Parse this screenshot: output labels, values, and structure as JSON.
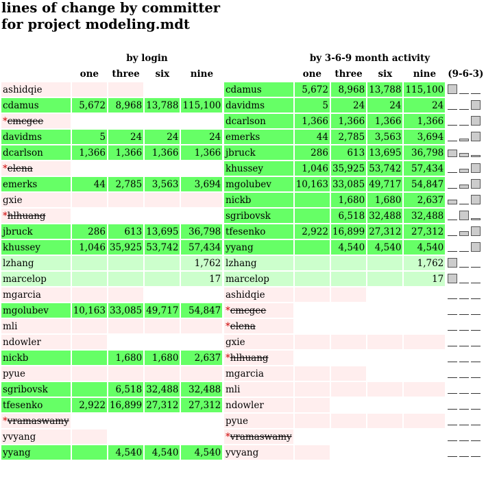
{
  "title": "lines of change by committer\nfor project modeling.mdt",
  "login_table": {
    "caption": "by login",
    "columns": [
      "one",
      "three",
      "six",
      "nine"
    ],
    "rows": [
      {
        "name": "ashidqie",
        "removed": false,
        "one": "",
        "three": "",
        "six": "",
        "nine": "",
        "colors": [
          "pk",
          "pk",
          "pk",
          "wh",
          "wh"
        ]
      },
      {
        "name": "cdamus",
        "removed": false,
        "one": "5,672",
        "three": "8,968",
        "six": "13,788",
        "nine": "115,100",
        "colors": [
          "g",
          "g",
          "g",
          "g",
          "g"
        ]
      },
      {
        "name": "cmcgee",
        "removed": true,
        "one": "",
        "three": "",
        "six": "",
        "nine": "",
        "colors": [
          "pk",
          "wh",
          "wh",
          "wh",
          "wh"
        ]
      },
      {
        "name": "davidms",
        "removed": false,
        "one": "5",
        "three": "24",
        "six": "24",
        "nine": "24",
        "colors": [
          "g",
          "g",
          "g",
          "g",
          "g"
        ]
      },
      {
        "name": "dcarlson",
        "removed": false,
        "one": "1,366",
        "three": "1,366",
        "six": "1,366",
        "nine": "1,366",
        "colors": [
          "g",
          "g",
          "g",
          "g",
          "g"
        ]
      },
      {
        "name": "elena",
        "removed": true,
        "one": "",
        "three": "",
        "six": "",
        "nine": "",
        "colors": [
          "pk",
          "wh",
          "wh",
          "wh",
          "wh"
        ]
      },
      {
        "name": "emerks",
        "removed": false,
        "one": "44",
        "three": "2,785",
        "six": "3,563",
        "nine": "3,694",
        "colors": [
          "g",
          "g",
          "g",
          "g",
          "g"
        ]
      },
      {
        "name": "gxie",
        "removed": false,
        "one": "",
        "three": "",
        "six": "",
        "nine": "",
        "colors": [
          "pk",
          "pk",
          "pk",
          "pk",
          "pk"
        ]
      },
      {
        "name": "hlhuang",
        "removed": true,
        "one": "",
        "three": "",
        "six": "",
        "nine": "",
        "colors": [
          "pk",
          "wh",
          "wh",
          "wh",
          "wh"
        ]
      },
      {
        "name": "jbruck",
        "removed": false,
        "one": "286",
        "three": "613",
        "six": "13,695",
        "nine": "36,798",
        "colors": [
          "g",
          "g",
          "g",
          "g",
          "g"
        ]
      },
      {
        "name": "khussey",
        "removed": false,
        "one": "1,046",
        "three": "35,925",
        "six": "53,742",
        "nine": "57,434",
        "colors": [
          "g",
          "g",
          "g",
          "g",
          "g"
        ]
      },
      {
        "name": "lzhang",
        "removed": false,
        "one": "",
        "three": "",
        "six": "",
        "nine": "1,762",
        "colors": [
          "lg",
          "lg",
          "lg",
          "lg",
          "lg"
        ]
      },
      {
        "name": "marcelop",
        "removed": false,
        "one": "",
        "three": "",
        "six": "",
        "nine": "17",
        "colors": [
          "lg",
          "lg",
          "lg",
          "lg",
          "lg"
        ]
      },
      {
        "name": "mgarcia",
        "removed": false,
        "one": "",
        "three": "",
        "six": "",
        "nine": "",
        "colors": [
          "pk",
          "pk",
          "pk",
          "wh",
          "wh"
        ]
      },
      {
        "name": "mgolubev",
        "removed": false,
        "one": "10,163",
        "three": "33,085",
        "six": "49,717",
        "nine": "54,847",
        "colors": [
          "g",
          "g",
          "g",
          "g",
          "g"
        ]
      },
      {
        "name": "mli",
        "removed": false,
        "one": "",
        "three": "",
        "six": "",
        "nine": "",
        "colors": [
          "pk",
          "pk",
          "pk",
          "pk",
          "pk"
        ]
      },
      {
        "name": "ndowler",
        "removed": false,
        "one": "",
        "three": "",
        "six": "",
        "nine": "",
        "colors": [
          "pk",
          "pk",
          "wh",
          "wh",
          "wh"
        ]
      },
      {
        "name": "nickb",
        "removed": false,
        "one": "",
        "three": "1,680",
        "six": "1,680",
        "nine": "2,637",
        "colors": [
          "g",
          "g",
          "g",
          "g",
          "g"
        ]
      },
      {
        "name": "pyue",
        "removed": false,
        "one": "",
        "three": "",
        "six": "",
        "nine": "",
        "colors": [
          "pk",
          "pk",
          "pk",
          "pk",
          "pk"
        ]
      },
      {
        "name": "sgribovsk",
        "removed": false,
        "one": "",
        "three": "6,518",
        "six": "32,488",
        "nine": "32,488",
        "colors": [
          "g",
          "g",
          "g",
          "g",
          "g"
        ]
      },
      {
        "name": "tfesenko",
        "removed": false,
        "one": "2,922",
        "three": "16,899",
        "six": "27,312",
        "nine": "27,312",
        "colors": [
          "g",
          "g",
          "g",
          "g",
          "g"
        ]
      },
      {
        "name": "vramaswamy",
        "removed": true,
        "one": "",
        "three": "",
        "six": "",
        "nine": "",
        "colors": [
          "pk",
          "wh",
          "wh",
          "wh",
          "wh"
        ]
      },
      {
        "name": "yvyang",
        "removed": false,
        "one": "",
        "three": "",
        "six": "",
        "nine": "",
        "colors": [
          "pk",
          "pk",
          "wh",
          "wh",
          "wh"
        ]
      },
      {
        "name": "yyang",
        "removed": false,
        "one": "",
        "three": "4,540",
        "six": "4,540",
        "nine": "4,540",
        "colors": [
          "g",
          "g",
          "g",
          "g",
          "g"
        ]
      }
    ]
  },
  "activity_table": {
    "caption": "by 3-6-9 month activity",
    "columns": [
      "one",
      "three",
      "six",
      "nine"
    ],
    "spark_header": "(9-6-3)",
    "rows": [
      {
        "name": "cdamus",
        "removed": false,
        "one": "5,672",
        "three": "8,968",
        "six": "13,788",
        "nine": "115,100",
        "colors": [
          "g",
          "g",
          "g",
          "g",
          "g"
        ],
        "spark": [
          0.9,
          0,
          0
        ]
      },
      {
        "name": "davidms",
        "removed": false,
        "one": "5",
        "three": "24",
        "six": "24",
        "nine": "24",
        "colors": [
          "g",
          "g",
          "g",
          "g",
          "g"
        ],
        "spark": [
          0,
          0,
          0.9
        ]
      },
      {
        "name": "dcarlson",
        "removed": false,
        "one": "1,366",
        "three": "1,366",
        "six": "1,366",
        "nine": "1,366",
        "colors": [
          "g",
          "g",
          "g",
          "g",
          "g"
        ],
        "spark": [
          0,
          0,
          0.9
        ]
      },
      {
        "name": "emerks",
        "removed": false,
        "one": "44",
        "three": "2,785",
        "six": "3,563",
        "nine": "3,694",
        "colors": [
          "g",
          "g",
          "g",
          "g",
          "g"
        ],
        "spark": [
          0,
          0.25,
          0.9
        ]
      },
      {
        "name": "jbruck",
        "removed": false,
        "one": "286",
        "three": "613",
        "six": "13,695",
        "nine": "36,798",
        "colors": [
          "g",
          "g",
          "g",
          "g",
          "g"
        ],
        "spark": [
          0.7,
          0.4,
          0.1
        ]
      },
      {
        "name": "khussey",
        "removed": false,
        "one": "1,046",
        "three": "35,925",
        "six": "53,742",
        "nine": "57,434",
        "colors": [
          "g",
          "g",
          "g",
          "g",
          "g"
        ],
        "spark": [
          0,
          0.35,
          0.9
        ]
      },
      {
        "name": "mgolubev",
        "removed": false,
        "one": "10,163",
        "three": "33,085",
        "six": "49,717",
        "nine": "54,847",
        "colors": [
          "g",
          "g",
          "g",
          "g",
          "g"
        ],
        "spark": [
          0,
          0.35,
          0.9
        ]
      },
      {
        "name": "nickb",
        "removed": false,
        "one": "",
        "three": "1,680",
        "six": "1,680",
        "nine": "2,637",
        "colors": [
          "g",
          "g",
          "g",
          "g",
          "g"
        ],
        "spark": [
          0.45,
          0,
          0.9
        ]
      },
      {
        "name": "sgribovsk",
        "removed": false,
        "one": "",
        "three": "6,518",
        "six": "32,488",
        "nine": "32,488",
        "colors": [
          "g",
          "g",
          "g",
          "g",
          "g"
        ],
        "spark": [
          0,
          0.9,
          0.15
        ]
      },
      {
        "name": "tfesenko",
        "removed": false,
        "one": "2,922",
        "three": "16,899",
        "six": "27,312",
        "nine": "27,312",
        "colors": [
          "g",
          "g",
          "g",
          "g",
          "g"
        ],
        "spark": [
          0,
          0.45,
          0.9
        ]
      },
      {
        "name": "yyang",
        "removed": false,
        "one": "",
        "three": "4,540",
        "six": "4,540",
        "nine": "4,540",
        "colors": [
          "g",
          "g",
          "g",
          "g",
          "g"
        ],
        "spark": [
          0,
          0,
          0.9
        ]
      },
      {
        "name": "lzhang",
        "removed": false,
        "one": "",
        "three": "",
        "six": "",
        "nine": "1,762",
        "colors": [
          "lg",
          "lg",
          "lg",
          "lg",
          "lg"
        ],
        "spark": [
          0.9,
          0,
          0
        ]
      },
      {
        "name": "marcelop",
        "removed": false,
        "one": "",
        "three": "",
        "six": "",
        "nine": "17",
        "colors": [
          "lg",
          "lg",
          "lg",
          "lg",
          "lg"
        ],
        "spark": [
          0.9,
          0,
          0
        ]
      },
      {
        "name": "ashidqie",
        "removed": false,
        "one": "",
        "three": "",
        "six": "",
        "nine": "",
        "colors": [
          "pk",
          "pk",
          "pk",
          "wh",
          "wh"
        ],
        "spark": [
          0,
          0,
          0
        ]
      },
      {
        "name": "cmcgee",
        "removed": true,
        "one": "",
        "three": "",
        "six": "",
        "nine": "",
        "colors": [
          "pk",
          "wh",
          "wh",
          "wh",
          "wh"
        ],
        "spark": [
          0,
          0,
          0
        ]
      },
      {
        "name": "elena",
        "removed": true,
        "one": "",
        "three": "",
        "six": "",
        "nine": "",
        "colors": [
          "pk",
          "wh",
          "wh",
          "wh",
          "wh"
        ],
        "spark": [
          0,
          0,
          0
        ]
      },
      {
        "name": "gxie",
        "removed": false,
        "one": "",
        "three": "",
        "six": "",
        "nine": "",
        "colors": [
          "pk",
          "pk",
          "pk",
          "pk",
          "pk"
        ],
        "spark": [
          0,
          0,
          0
        ]
      },
      {
        "name": "hlhuang",
        "removed": true,
        "one": "",
        "three": "",
        "six": "",
        "nine": "",
        "colors": [
          "pk",
          "wh",
          "wh",
          "wh",
          "wh"
        ],
        "spark": [
          0,
          0,
          0
        ]
      },
      {
        "name": "mgarcia",
        "removed": false,
        "one": "",
        "three": "",
        "six": "",
        "nine": "",
        "colors": [
          "pk",
          "pk",
          "pk",
          "wh",
          "wh"
        ],
        "spark": [
          0,
          0,
          0
        ]
      },
      {
        "name": "mli",
        "removed": false,
        "one": "",
        "three": "",
        "six": "",
        "nine": "",
        "colors": [
          "pk",
          "pk",
          "pk",
          "pk",
          "pk"
        ],
        "spark": [
          0,
          0,
          0
        ]
      },
      {
        "name": "ndowler",
        "removed": false,
        "one": "",
        "three": "",
        "six": "",
        "nine": "",
        "colors": [
          "pk",
          "pk",
          "wh",
          "wh",
          "wh"
        ],
        "spark": [
          0,
          0,
          0
        ]
      },
      {
        "name": "pyue",
        "removed": false,
        "one": "",
        "three": "",
        "six": "",
        "nine": "",
        "colors": [
          "pk",
          "pk",
          "pk",
          "pk",
          "pk"
        ],
        "spark": [
          0,
          0,
          0
        ]
      },
      {
        "name": "vramaswamy",
        "removed": true,
        "one": "",
        "three": "",
        "six": "",
        "nine": "",
        "colors": [
          "pk",
          "wh",
          "wh",
          "wh",
          "wh"
        ],
        "spark": [
          0,
          0,
          0
        ]
      },
      {
        "name": "yvyang",
        "removed": false,
        "one": "",
        "three": "",
        "six": "",
        "nine": "",
        "colors": [
          "pk",
          "pk",
          "wh",
          "wh",
          "wh"
        ],
        "spark": [
          0,
          0,
          0
        ]
      }
    ]
  }
}
